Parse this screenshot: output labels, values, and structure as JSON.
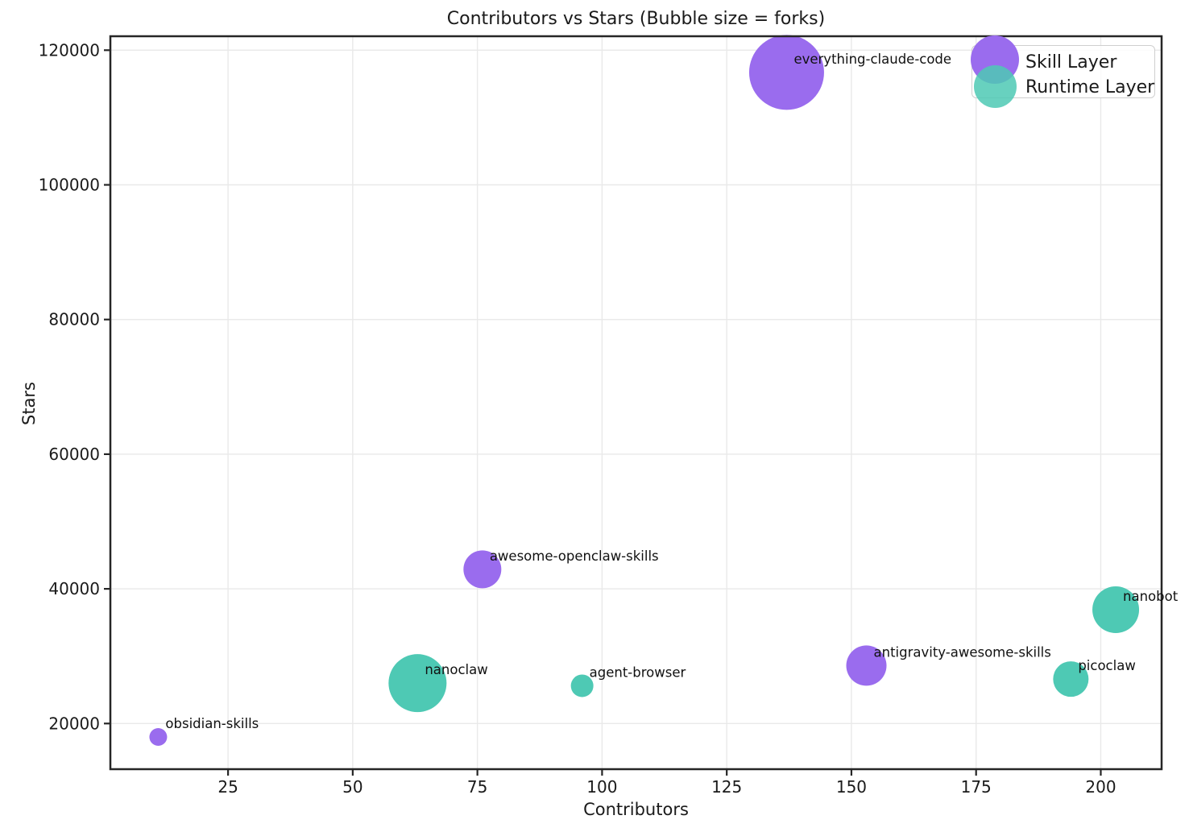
{
  "title": "Contributors vs Stars (Bubble size = forks)",
  "xlabel": "Contributors",
  "ylabel": "Stars",
  "legend": {
    "position": "upper right",
    "items": [
      {
        "label": "Skill Layer",
        "color": "#9a6cee"
      },
      {
        "label": "Runtime Layer",
        "color": "#4ec9b4"
      }
    ]
  },
  "colors": {
    "skill_layer": "#9a6cee",
    "runtime_layer": "#4ec9b4",
    "spine": "#262626",
    "grid": "#e9e9e9",
    "text": "#1a1a1a",
    "background": "#ffffff"
  },
  "chart_data": {
    "type": "scatter",
    "title": "Contributors vs Stars (Bubble size = forks)",
    "xlabel": "Contributors",
    "ylabel": "Stars",
    "bubble_size_meaning": "forks",
    "grid": true,
    "legend_position": "upper right",
    "xlim": [
      1.4,
      212.2
    ],
    "ylim": [
      13218,
      122070
    ],
    "xticks": [
      25,
      50,
      75,
      100,
      125,
      150,
      175,
      200
    ],
    "yticks": [
      20000,
      40000,
      60000,
      80000,
      100000,
      120000
    ],
    "series": [
      {
        "name": "Skill Layer",
        "color": "#9a6cee",
        "points": [
          {
            "label": "everything-claude-code",
            "contributors": 137,
            "stars": 116700,
            "radius_px": 46.5
          },
          {
            "label": "awesome-openclaw-skills",
            "contributors": 76,
            "stars": 42900,
            "radius_px": 23.5
          },
          {
            "label": "antigravity-awesome-skills",
            "contributors": 153,
            "stars": 28600,
            "radius_px": 25
          },
          {
            "label": "obsidian-skills",
            "contributors": 11,
            "stars": 18000,
            "radius_px": 11
          }
        ]
      },
      {
        "name": "Runtime Layer",
        "color": "#4ec9b4",
        "points": [
          {
            "label": "nanobot",
            "contributors": 203,
            "stars": 36900,
            "radius_px": 29
          },
          {
            "label": "picoclaw",
            "contributors": 194,
            "stars": 26600,
            "radius_px": 22
          },
          {
            "label": "nanoclaw",
            "contributors": 63,
            "stars": 26000,
            "radius_px": 36
          },
          {
            "label": "agent-browser",
            "contributors": 96,
            "stars": 25600,
            "radius_px": 14
          }
        ]
      }
    ]
  }
}
